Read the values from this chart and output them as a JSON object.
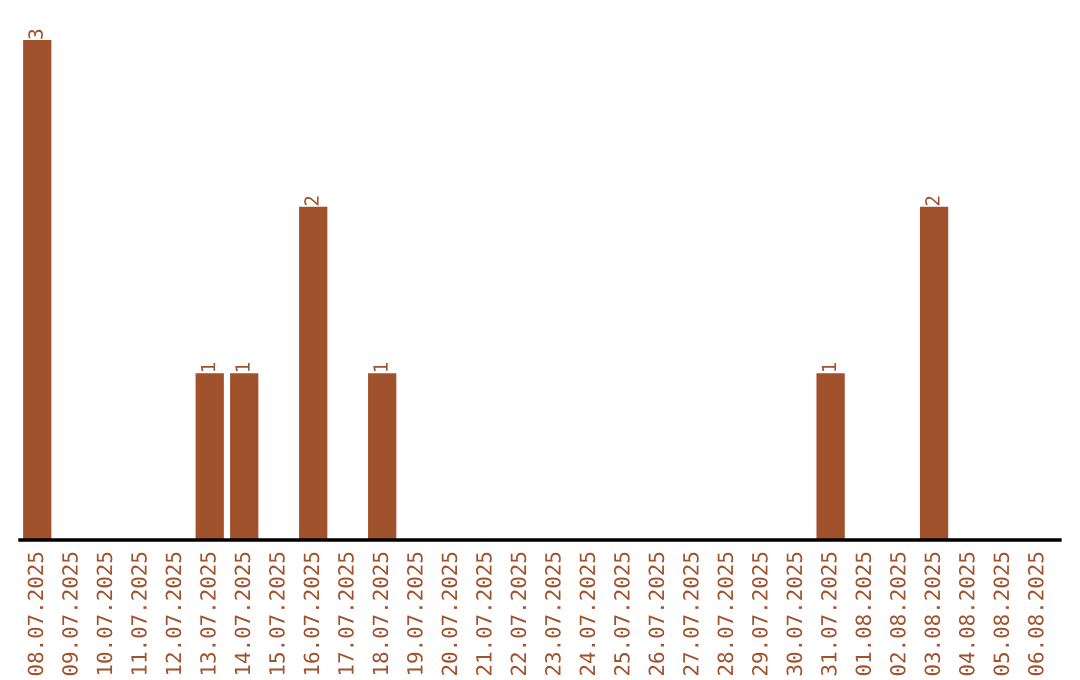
{
  "chart_data": {
    "type": "bar",
    "categories": [
      "08.07.2025",
      "09.07.2025",
      "10.07.2025",
      "11.07.2025",
      "12.07.2025",
      "13.07.2025",
      "14.07.2025",
      "15.07.2025",
      "16.07.2025",
      "17.07.2025",
      "18.07.2025",
      "19.07.2025",
      "20.07.2025",
      "21.07.2025",
      "22.07.2025",
      "23.07.2025",
      "24.07.2025",
      "25.07.2025",
      "26.07.2025",
      "27.07.2025",
      "28.07.2025",
      "29.07.2025",
      "30.07.2025",
      "31.07.2025",
      "01.08.2025",
      "02.08.2025",
      "03.08.2025",
      "04.08.2025",
      "05.08.2025",
      "06.08.2025"
    ],
    "values": [
      3,
      0,
      0,
      0,
      0,
      1,
      1,
      0,
      2,
      0,
      1,
      0,
      0,
      0,
      0,
      0,
      0,
      0,
      0,
      0,
      0,
      0,
      0,
      1,
      0,
      0,
      2,
      0,
      0,
      0
    ],
    "value_labels": [
      "3",
      null,
      null,
      null,
      null,
      "1",
      "1",
      null,
      "2",
      null,
      "1",
      null,
      null,
      null,
      null,
      null,
      null,
      null,
      null,
      null,
      null,
      null,
      null,
      "1",
      null,
      null,
      "2",
      null,
      null,
      null
    ],
    "color": "#a0522d",
    "grid": false,
    "legend": false
  }
}
